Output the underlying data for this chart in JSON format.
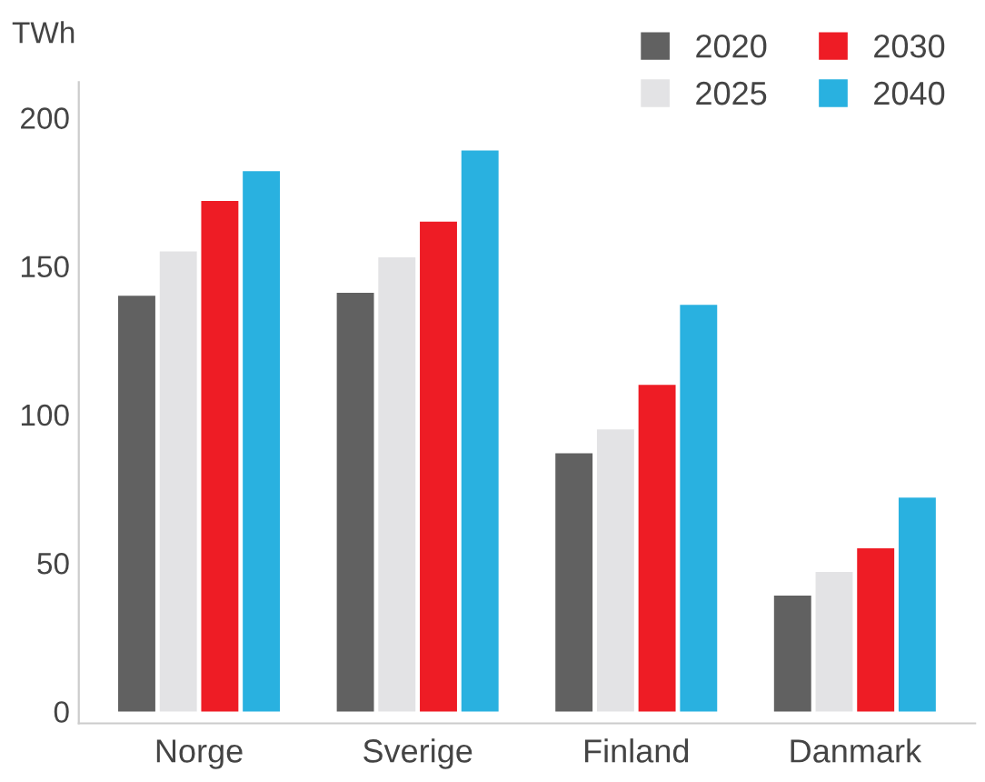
{
  "chart_data": {
    "type": "bar",
    "ylabel": "TWh",
    "categories": [
      "Norge",
      "Sverige",
      "Finland",
      "Danmark"
    ],
    "series": [
      {
        "name": "2020",
        "color": "#616161",
        "values": [
          140,
          141,
          87,
          39
        ]
      },
      {
        "name": "2025",
        "color": "#e3e3e5",
        "values": [
          155,
          153,
          95,
          47
        ]
      },
      {
        "name": "2030",
        "color": "#ee1c25",
        "values": [
          172,
          165,
          110,
          55
        ]
      },
      {
        "name": "2040",
        "color": "#29b1e0",
        "values": [
          182,
          189,
          137,
          72
        ]
      }
    ],
    "ylim": [
      -4,
      212
    ],
    "yticks": [
      0,
      50,
      100,
      150,
      200
    ],
    "grid": false,
    "legend": "top right"
  }
}
